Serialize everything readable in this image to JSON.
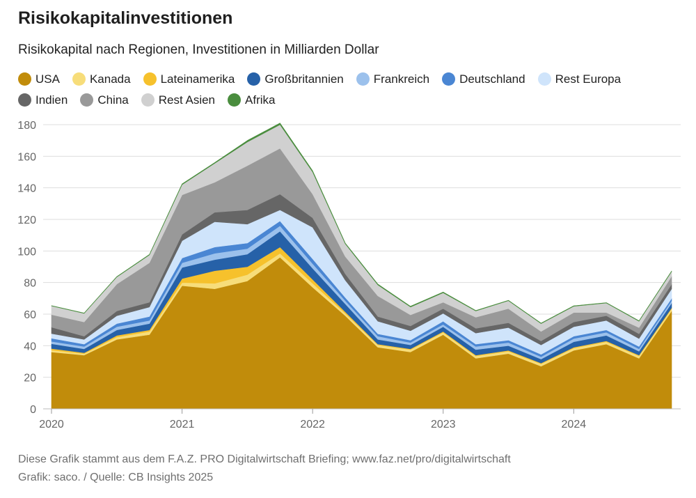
{
  "header": {
    "title": "Risikokapitalinvestitionen",
    "subtitle": "Risikokapital nach Regionen, Investitionen in Milliarden Dollar"
  },
  "footer": {
    "line1": "Diese Grafik stammt aus dem F.A.Z. PRO Digitalwirtschaft Briefing; www.faz.net/pro/digitalwirtschaft",
    "line2": "Grafik: saco. / Quelle: CB Insights 2025"
  },
  "chart_data": {
    "type": "area",
    "stacked": true,
    "title": "Risikokapitalinvestitionen",
    "subtitle": "Risikokapital nach Regionen, Investitionen in Milliarden Dollar",
    "xlabel": "",
    "ylabel": "",
    "ylim": [
      0,
      180
    ],
    "yticks": [
      0,
      20,
      40,
      60,
      80,
      100,
      120,
      140,
      160,
      180
    ],
    "grid": true,
    "legend_position": "top",
    "x": [
      "2020Q1",
      "2020Q2",
      "2020Q3",
      "2020Q4",
      "2021Q1",
      "2021Q2",
      "2021Q3",
      "2021Q4",
      "2022Q1",
      "2022Q2",
      "2022Q3",
      "2022Q4",
      "2023Q1",
      "2023Q2",
      "2023Q3",
      "2023Q4",
      "2024Q1",
      "2024Q2",
      "2024Q3",
      "2024Q4"
    ],
    "xticks": [
      {
        "label": "2020",
        "index": 0
      },
      {
        "label": "2021",
        "index": 4
      },
      {
        "label": "2022",
        "index": 8
      },
      {
        "label": "2023",
        "index": 12
      },
      {
        "label": "2024",
        "index": 16
      }
    ],
    "series": [
      {
        "name": "USA",
        "color": "#c18c0b",
        "values": [
          36,
          34,
          44,
          47,
          78,
          76,
          81,
          96,
          77,
          59,
          39,
          36,
          47,
          32,
          35,
          27,
          37,
          41,
          32,
          62
        ]
      },
      {
        "name": "Kanada",
        "color": "#f7dd7a",
        "values": [
          1.2,
          1,
          1.5,
          2,
          2,
          3.5,
          4,
          2.5,
          2.5,
          1.5,
          1.5,
          1.5,
          1.5,
          1.5,
          1.5,
          1.5,
          1.5,
          1.5,
          1.5,
          1.5
        ]
      },
      {
        "name": "Lateinamerika",
        "color": "#f6c12c",
        "values": [
          1,
          0.5,
          1,
          1,
          2.5,
          8,
          5,
          4,
          2.5,
          1,
          0.5,
          0.5,
          0.5,
          0.5,
          0.5,
          0.5,
          0.5,
          0.5,
          0.5,
          0.5
        ]
      },
      {
        "name": "Großbritannien",
        "color": "#2661a8",
        "values": [
          3,
          2.5,
          3.5,
          4,
          7,
          7,
          8,
          10,
          7,
          5,
          3,
          2.5,
          3,
          3.5,
          3,
          2.5,
          3.5,
          3.5,
          2.5,
          3
        ]
      },
      {
        "name": "Frankreich",
        "color": "#9cc1ec",
        "values": [
          1.5,
          1.5,
          2,
          2,
          3,
          4,
          3.5,
          3.5,
          3,
          2,
          2,
          1.5,
          1.5,
          2,
          2,
          1.5,
          2,
          2,
          1.5,
          1.5
        ]
      },
      {
        "name": "Deutschland",
        "color": "#4a86d3",
        "values": [
          2,
          1.5,
          2,
          2.5,
          3,
          4,
          3.5,
          3,
          3,
          2,
          1.5,
          1.5,
          2,
          1.5,
          1.5,
          1.5,
          1.5,
          1.5,
          1.5,
          1.5
        ]
      },
      {
        "name": "Rest Europa",
        "color": "#cfe4fb",
        "values": [
          3,
          3,
          5,
          6,
          11,
          16,
          12,
          7,
          20,
          11,
          8,
          6,
          5,
          7,
          8,
          6,
          6,
          6,
          5,
          6
        ]
      },
      {
        "name": "Indien",
        "color": "#666666",
        "values": [
          4,
          2,
          3,
          3,
          4,
          6,
          9,
          10,
          6,
          4,
          3,
          3,
          3,
          3,
          3,
          2.5,
          3,
          3,
          3,
          3
        ]
      },
      {
        "name": "China",
        "color": "#999999",
        "values": [
          8,
          9,
          17,
          25,
          25,
          19,
          28,
          29,
          15,
          11,
          13,
          7,
          4,
          7,
          9,
          6,
          6,
          2,
          4,
          5
        ]
      },
      {
        "name": "Rest Asien",
        "color": "#d0d0d0",
        "values": [
          5.5,
          5.5,
          4.5,
          5,
          6.5,
          12,
          15,
          15,
          14,
          8,
          7,
          5,
          6,
          4,
          5,
          5,
          4,
          6,
          4,
          3
        ]
      },
      {
        "name": "Afrika",
        "color": "#4a8d3e",
        "values": [
          0.2,
          0.2,
          0.3,
          0.3,
          0.5,
          0.5,
          1,
          1,
          0.8,
          0.5,
          0.5,
          0.5,
          0.5,
          0.3,
          0.3,
          0.3,
          0.3,
          0.3,
          0.3,
          0.3
        ]
      }
    ]
  }
}
